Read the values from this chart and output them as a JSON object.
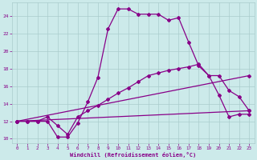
{
  "xlabel": "Windchill (Refroidissement éolien,°C)",
  "background_color": "#cceaea",
  "grid_color": "#aacccc",
  "line_color": "#880088",
  "xlim": [
    -0.5,
    23.5
  ],
  "ylim": [
    9.5,
    25.5
  ],
  "yticks": [
    10,
    12,
    14,
    16,
    18,
    20,
    22,
    24
  ],
  "xticks": [
    0,
    1,
    2,
    3,
    4,
    5,
    6,
    7,
    8,
    9,
    10,
    11,
    12,
    13,
    14,
    15,
    16,
    17,
    18,
    19,
    20,
    21,
    22,
    23
  ],
  "line1_x": [
    0,
    1,
    2,
    3,
    4,
    5,
    6,
    7,
    8,
    9,
    10,
    11,
    12,
    13,
    14,
    15,
    16,
    17,
    18,
    19,
    20,
    21,
    22,
    23
  ],
  "line1_y": [
    12,
    12,
    12,
    12,
    10.2,
    10.2,
    11.8,
    14.2,
    17,
    22.5,
    24.8,
    24.8,
    24.2,
    24.2,
    24.2,
    23.5,
    23.8,
    21,
    18.3,
    17.2,
    15,
    12.5,
    12.8,
    12.8
  ],
  "line2_x": [
    0,
    1,
    2,
    3,
    4,
    5,
    6,
    7,
    8,
    9,
    10,
    11,
    12,
    13,
    14,
    15,
    16,
    17,
    18,
    19,
    20,
    21,
    22,
    23
  ],
  "line2_y": [
    12,
    12,
    12,
    12.5,
    11.5,
    10.5,
    12.5,
    13.2,
    13.8,
    14.5,
    15.2,
    15.8,
    16.5,
    17.2,
    17.5,
    17.8,
    18,
    18.2,
    18.5,
    17.2,
    17.2,
    15.5,
    14.8,
    13.2
  ],
  "line3_x": [
    0,
    23
  ],
  "line3_y": [
    12,
    13.2
  ],
  "line4_x": [
    0,
    23
  ],
  "line4_y": [
    12,
    17.2
  ]
}
